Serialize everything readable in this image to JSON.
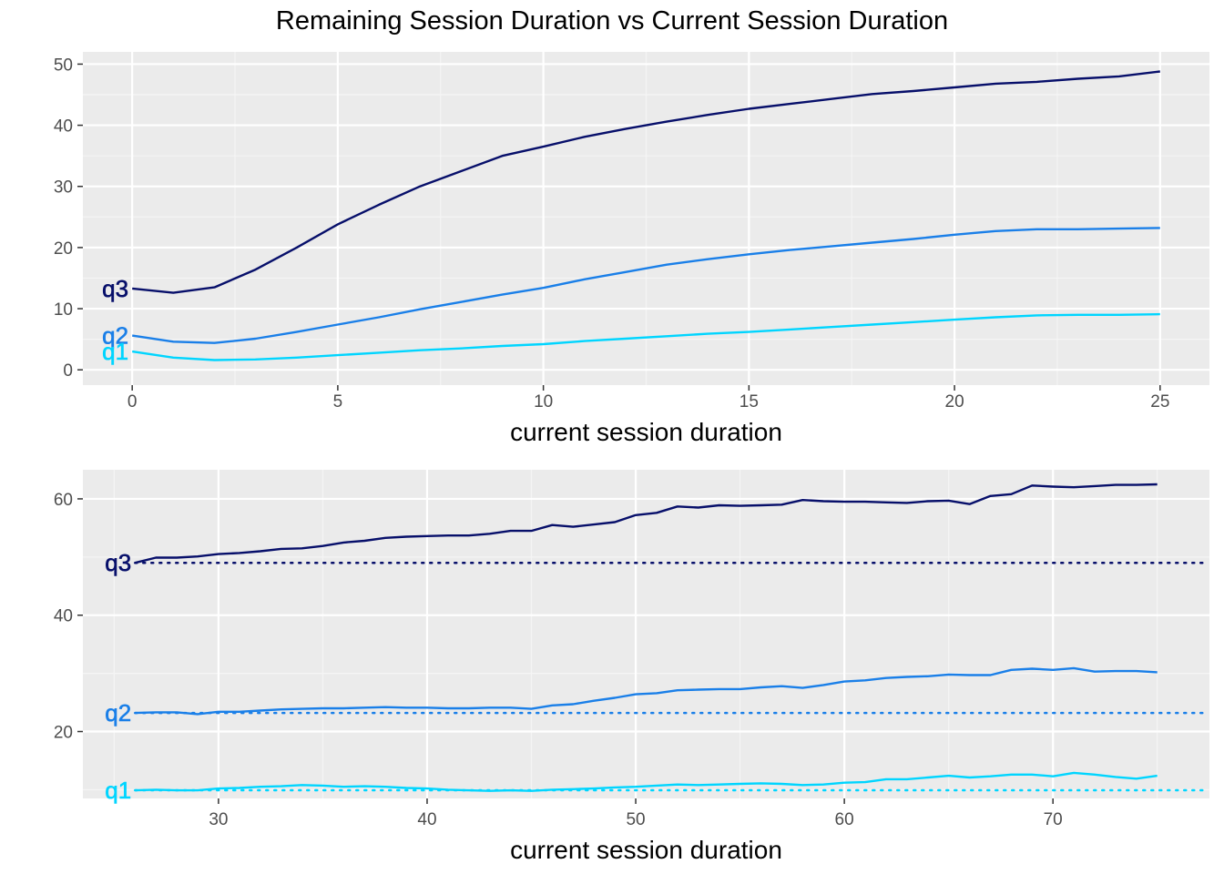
{
  "title": "Remaining Session Duration vs Current Session Duration",
  "colors": {
    "q1": "#00d5ff",
    "q2": "#1a7fe8",
    "q3": "#070f6a",
    "panel_bg": "#ebebeb",
    "grid_major": "#ffffff",
    "grid_minor": "#f5f5f5"
  },
  "chart_data": [
    {
      "type": "line",
      "xlabel": "current session duration",
      "ylabel": "",
      "xlim": [
        -1.2,
        26.2
      ],
      "ylim": [
        -2.5,
        52
      ],
      "xticks": [
        0,
        5,
        10,
        15,
        20,
        25
      ],
      "yticks": [
        0,
        10,
        20,
        30,
        40,
        50
      ],
      "grid": true,
      "x": [
        0,
        1,
        2,
        3,
        4,
        5,
        6,
        7,
        8,
        9,
        10,
        11,
        12,
        13,
        14,
        15,
        16,
        17,
        18,
        19,
        20,
        21,
        22,
        23,
        24,
        25
      ],
      "series": [
        {
          "name": "q3",
          "color_key": "q3",
          "values": [
            13.3,
            12.6,
            13.5,
            16.4,
            20.0,
            23.8,
            27.0,
            30.0,
            32.5,
            35.0,
            36.5,
            38.1,
            39.4,
            40.6,
            41.7,
            42.7,
            43.5,
            44.3,
            45.1,
            45.6,
            46.2,
            46.8,
            47.1,
            47.6,
            48.0,
            48.8
          ]
        },
        {
          "name": "q2",
          "color_key": "q2",
          "values": [
            5.6,
            4.6,
            4.4,
            5.1,
            6.2,
            7.4,
            8.6,
            9.9,
            11.1,
            12.3,
            13.4,
            14.8,
            16.0,
            17.2,
            18.1,
            18.9,
            19.6,
            20.2,
            20.8,
            21.4,
            22.1,
            22.7,
            23.0,
            23.0,
            23.1,
            23.2
          ]
        },
        {
          "name": "q1",
          "color_key": "q1",
          "values": [
            3.0,
            2.0,
            1.6,
            1.7,
            2.0,
            2.4,
            2.8,
            3.2,
            3.5,
            3.9,
            4.2,
            4.7,
            5.1,
            5.5,
            5.9,
            6.2,
            6.6,
            7.0,
            7.4,
            7.8,
            8.2,
            8.6,
            8.9,
            9.0,
            9.0,
            9.1
          ]
        }
      ]
    },
    {
      "type": "line",
      "xlabel": "current session duration",
      "ylabel": "",
      "xlim": [
        23.5,
        77.5
      ],
      "ylim": [
        8.5,
        65
      ],
      "xticks": [
        30,
        40,
        50,
        60,
        70
      ],
      "yticks": [
        20,
        40,
        60
      ],
      "grid": true,
      "x": [
        26,
        27,
        28,
        29,
        30,
        31,
        32,
        33,
        34,
        35,
        36,
        37,
        38,
        39,
        40,
        41,
        42,
        43,
        44,
        45,
        46,
        47,
        48,
        49,
        50,
        51,
        52,
        53,
        54,
        55,
        56,
        57,
        58,
        59,
        60,
        61,
        62,
        63,
        64,
        65,
        66,
        67,
        68,
        69,
        70,
        71,
        72,
        73,
        74,
        75
      ],
      "reference_lines": [
        {
          "name": "q3",
          "value": 49.0,
          "color_key": "q3"
        },
        {
          "name": "q2",
          "value": 23.2,
          "color_key": "q2"
        },
        {
          "name": "q1",
          "value": 9.9,
          "color_key": "q1"
        }
      ],
      "series": [
        {
          "name": "q3",
          "color_key": "q3",
          "values": [
            49.0,
            49.9,
            49.9,
            50.1,
            50.5,
            50.7,
            51.0,
            51.4,
            51.5,
            51.9,
            52.5,
            52.8,
            53.3,
            53.5,
            53.6,
            53.7,
            53.7,
            54.0,
            54.5,
            54.5,
            55.5,
            55.2,
            55.6,
            56.0,
            57.2,
            57.6,
            58.7,
            58.5,
            58.9,
            58.8,
            58.9,
            59.0,
            59.8,
            59.6,
            59.5,
            59.5,
            59.4,
            59.3,
            59.6,
            59.7,
            59.1,
            60.5,
            60.8,
            62.3,
            62.1,
            62.0,
            62.2,
            62.4,
            62.4,
            62.5
          ]
        },
        {
          "name": "q2",
          "color_key": "q2",
          "values": [
            23.2,
            23.3,
            23.3,
            23.0,
            23.4,
            23.4,
            23.6,
            23.8,
            23.9,
            24.0,
            24.0,
            24.1,
            24.2,
            24.1,
            24.1,
            24.0,
            24.0,
            24.1,
            24.1,
            23.9,
            24.5,
            24.7,
            25.3,
            25.8,
            26.4,
            26.6,
            27.1,
            27.2,
            27.3,
            27.3,
            27.6,
            27.8,
            27.5,
            28.0,
            28.6,
            28.8,
            29.2,
            29.4,
            29.5,
            29.8,
            29.7,
            29.7,
            30.6,
            30.8,
            30.6,
            30.9,
            30.3,
            30.4,
            30.4,
            30.2
          ]
        },
        {
          "name": "q1",
          "color_key": "q1",
          "values": [
            9.9,
            10.0,
            9.9,
            9.9,
            10.2,
            10.3,
            10.5,
            10.6,
            10.8,
            10.7,
            10.5,
            10.6,
            10.5,
            10.3,
            10.2,
            10.0,
            9.9,
            9.8,
            9.9,
            9.8,
            10.0,
            10.1,
            10.2,
            10.4,
            10.5,
            10.7,
            10.9,
            10.8,
            10.9,
            11.0,
            11.1,
            11.0,
            10.8,
            10.9,
            11.2,
            11.3,
            11.8,
            11.8,
            12.1,
            12.4,
            12.1,
            12.3,
            12.6,
            12.6,
            12.3,
            12.9,
            12.6,
            12.2,
            11.9,
            12.4
          ]
        }
      ]
    }
  ]
}
